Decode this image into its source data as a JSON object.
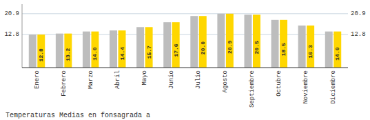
{
  "chart_data": {
    "type": "bar",
    "title": "Temperaturas Medias en fonsagrada a",
    "categories": [
      "Enero",
      "Febrero",
      "Marzo",
      "Abril",
      "Mayo",
      "Junio",
      "Julio",
      "Agosto",
      "Septiembre",
      "Octubre",
      "Noviembre",
      "Diciembre"
    ],
    "values": [
      12.8,
      13.2,
      14.0,
      14.4,
      15.7,
      17.6,
      20.0,
      20.9,
      20.5,
      18.5,
      16.3,
      14.0
    ],
    "value_labels": [
      "12.8",
      "13.2",
      "14.0",
      "14.4",
      "15.7",
      "17.6",
      "20.0",
      "20.9",
      "20.5",
      "18.5",
      "16.3",
      "14.0"
    ],
    "color": "#FFD700",
    "ylim": [
      0,
      24.6
    ],
    "yticks": [
      12.8,
      20.9
    ],
    "grid": true,
    "data_labels": true
  }
}
